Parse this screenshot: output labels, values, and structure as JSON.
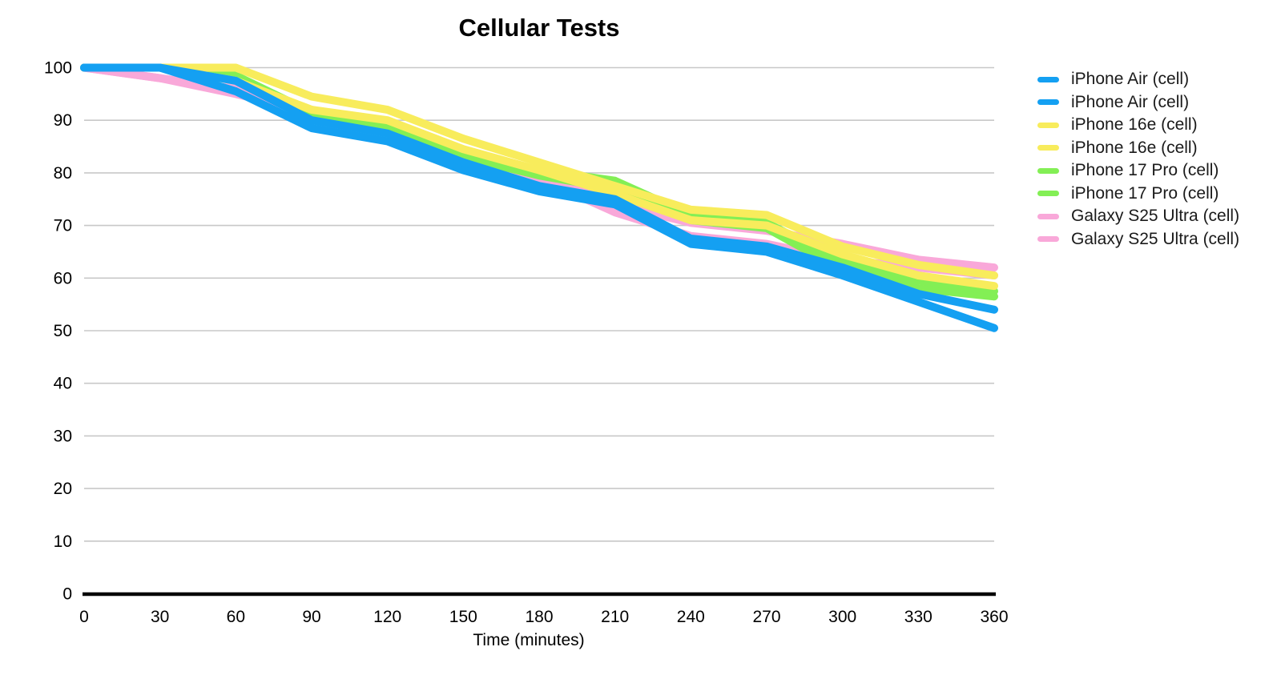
{
  "chart": {
    "title": "Cellular Tests",
    "x_axis_label": "Time (minutes)",
    "colors": {
      "blue": "#14A0F2",
      "yellow": "#F8EC5C",
      "green": "#83EF55",
      "pink": "#F9A8D9",
      "grid": "#C8C8C8",
      "axis": "#000000",
      "text": "#000000"
    }
  },
  "chart_data": {
    "type": "line",
    "title": "Cellular Tests",
    "xlabel": "Time (minutes)",
    "ylabel": "",
    "x": [
      0,
      30,
      60,
      90,
      120,
      150,
      180,
      210,
      240,
      270,
      300,
      330,
      360
    ],
    "x_ticks": [
      0,
      30,
      60,
      90,
      120,
      150,
      180,
      210,
      240,
      270,
      300,
      330,
      360
    ],
    "y_ticks": [
      0,
      10,
      20,
      30,
      40,
      50,
      60,
      70,
      80,
      90,
      100
    ],
    "xlim": [
      0,
      360
    ],
    "ylim": [
      0,
      100
    ],
    "grid": "horizontal-only",
    "legend_position": "right",
    "line_width": 10,
    "series": [
      {
        "name": "iPhone Air (cell)",
        "color": "#14A0F2",
        "values": [
          100,
          100,
          97.5,
          90,
          87.5,
          82,
          77.5,
          75,
          67.5,
          66,
          62,
          57,
          54
        ]
      },
      {
        "name": "iPhone Air (cell)",
        "color": "#14A0F2",
        "values": [
          100,
          100,
          95.5,
          88.5,
          86,
          80.5,
          76.5,
          74,
          66.5,
          65,
          60.5,
          55.5,
          50.5
        ]
      },
      {
        "name": "iPhone 16e (cell)",
        "color": "#F8EC5C",
        "values": [
          100,
          100,
          100,
          94.5,
          92,
          86.5,
          82,
          77.5,
          73,
          72,
          66,
          62.5,
          60.5
        ]
      },
      {
        "name": "iPhone 16e (cell)",
        "color": "#F8EC5C",
        "values": [
          100,
          100,
          97.5,
          92,
          90,
          84.5,
          80.5,
          76,
          71,
          70,
          64.5,
          60.5,
          58.5
        ]
      },
      {
        "name": "iPhone 17 Pro (cell)",
        "color": "#83EF55",
        "values": [
          100,
          100,
          98.5,
          91.5,
          89,
          84,
          80.5,
          78.5,
          72,
          70.5,
          63,
          59.5,
          57.5
        ]
      },
      {
        "name": "iPhone 17 Pro (cell)",
        "color": "#83EF55",
        "values": [
          100,
          100,
          98,
          90.5,
          88,
          83,
          79.5,
          77,
          71,
          69.5,
          61.5,
          58,
          56.5
        ]
      },
      {
        "name": "Galaxy S25 Ultra (cell)",
        "color": "#F9A8D9",
        "values": [
          100,
          98,
          96,
          92,
          89,
          83.5,
          80,
          74,
          70.5,
          69,
          66.5,
          63.5,
          62
        ]
      },
      {
        "name": "Galaxy S25 Ultra (cell)",
        "color": "#F9A8D9",
        "values": [
          100,
          98,
          95,
          91.5,
          88.5,
          82.5,
          79,
          72.5,
          68,
          66.5,
          63.5,
          62,
          60.5
        ]
      }
    ],
    "z_order": [
      7,
      6,
      5,
      4,
      3,
      2,
      1,
      0
    ]
  }
}
